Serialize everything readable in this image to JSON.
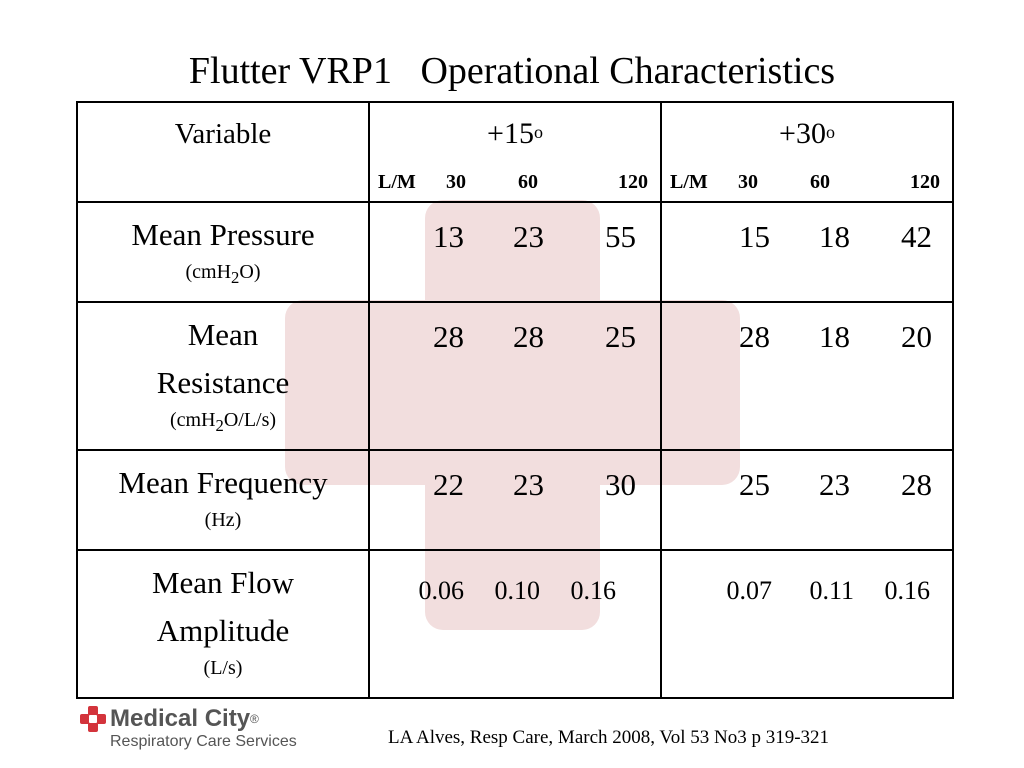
{
  "title": "Flutter VRP1   Operational Characteristics",
  "header": {
    "variable": "Variable",
    "groups": [
      {
        "angle": "+15",
        "deg": "o",
        "flow_prefix": "L/M",
        "flows": [
          "30",
          "60",
          "120"
        ]
      },
      {
        "angle": "+30",
        "deg": "o",
        "flow_prefix": "L/M",
        "flows": [
          "30",
          "60",
          "120"
        ]
      }
    ]
  },
  "rows": [
    {
      "name1": "Mean Pressure",
      "name2": "",
      "unit_pre": "(cmH",
      "unit_sub": "2",
      "unit_post": "O)",
      "g15": [
        "13",
        "23",
        "55"
      ],
      "g30": [
        "15",
        "18",
        "42"
      ]
    },
    {
      "name1": "Mean",
      "name2": "Resistance",
      "unit_pre": "(cmH",
      "unit_sub": "2",
      "unit_post": "O/L/s)",
      "g15": [
        "28",
        "28",
        "25"
      ],
      "g30": [
        "28",
        "18",
        "20"
      ]
    },
    {
      "name1": "Mean Frequency",
      "name2": "",
      "unit_pre": "(Hz)",
      "unit_sub": "",
      "unit_post": "",
      "g15": [
        "22",
        "23",
        "30"
      ],
      "g30": [
        "25",
        "23",
        "28"
      ]
    },
    {
      "name1": "Mean Flow",
      "name2": "Amplitude",
      "unit_pre": "(L/s)",
      "unit_sub": "",
      "unit_post": "",
      "g15": [
        "0.06",
        "0.10",
        "0.16"
      ],
      "g30": [
        "0.07",
        "0.11",
        "0.16"
      ]
    }
  ],
  "logo": {
    "name": "Medical City",
    "trademark": "®",
    "subtitle": "Respiratory Care Services",
    "color": "#d3343c"
  },
  "citation": "LA Alves, Resp Care, March 2008, Vol 53 No3 p 319-321",
  "watermark_color": "#f2dede"
}
